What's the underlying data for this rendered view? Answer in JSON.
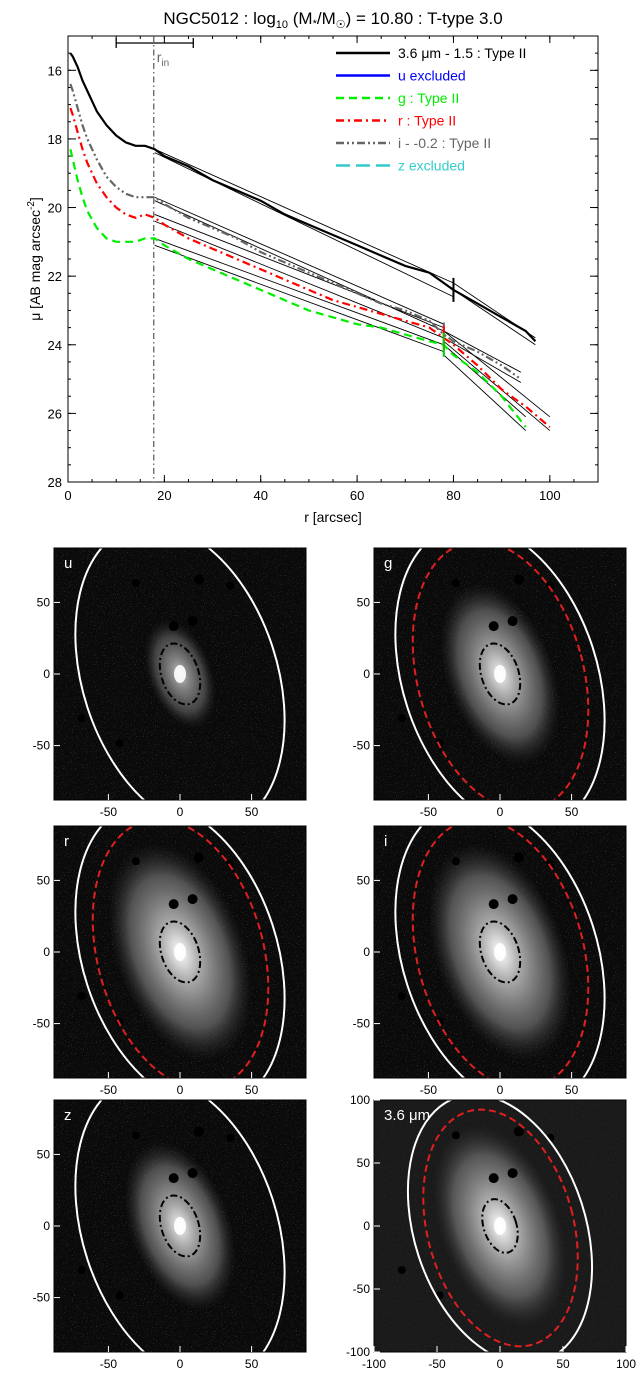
{
  "chart_data": [
    {
      "type": "line",
      "title": {
        "main": "NGC5012 : log",
        "sub10": "10",
        "mid1": " (M",
        "star": "*",
        "mid2": "/M",
        "sun": "☉",
        "tail": ") = 10.80 : T-type 3.0"
      },
      "xlabel": "r [arcsec]",
      "ylabel": {
        "main": "μ [AB mag arcsec",
        "sup": "-2",
        "end": "]"
      },
      "xlim": [
        0,
        110
      ],
      "ylim": [
        28,
        15
      ],
      "xticks": [
        0,
        20,
        40,
        60,
        80,
        100
      ],
      "yticks": [
        16,
        18,
        20,
        22,
        24,
        26,
        28
      ],
      "rin": {
        "label": "r",
        "sub": "in",
        "x": 17.8,
        "err": [
          10,
          26
        ]
      },
      "breaks": [
        {
          "x": 80,
          "y": 22.4,
          "color": "#000000"
        },
        {
          "x": 78,
          "y": 23.7,
          "color": "#666666"
        },
        {
          "x": 78,
          "y": 23.8,
          "color": "#ff0000"
        },
        {
          "x": 78,
          "y": 24.0,
          "color": "#00cc00"
        }
      ],
      "legend": [
        {
          "label": "3.6 μm - 1.5 : Type II",
          "color": "#000000",
          "style": "solid"
        },
        {
          "label": "u excluded",
          "color": "#0000ff",
          "style": "solid"
        },
        {
          "label": "g : Type II",
          "color": "#00ee00",
          "style": "dashed"
        },
        {
          "label": "r : Type II",
          "color": "#ff0000",
          "style": "dashdot"
        },
        {
          "label": "i - -0.2 : Type II",
          "color": "#666666",
          "style": "dashdotdot"
        },
        {
          "label": "z excluded",
          "color": "#33cccc",
          "style": "longdash"
        }
      ],
      "series": [
        {
          "name": "3.6 μm - 1.5 : Type II",
          "color": "#000000",
          "points": [
            [
              0.5,
              15.5
            ],
            [
              1,
              15.6
            ],
            [
              2,
              15.9
            ],
            [
              3,
              16.3
            ],
            [
              4,
              16.6
            ],
            [
              5,
              16.9
            ],
            [
              6,
              17.2
            ],
            [
              8,
              17.6
            ],
            [
              10,
              17.9
            ],
            [
              12,
              18.1
            ],
            [
              14,
              18.2
            ],
            [
              16,
              18.2
            ],
            [
              18,
              18.3
            ],
            [
              20,
              18.5
            ],
            [
              25,
              18.8
            ],
            [
              30,
              19.2
            ],
            [
              35,
              19.5
            ],
            [
              40,
              19.8
            ],
            [
              45,
              20.2
            ],
            [
              50,
              20.5
            ],
            [
              55,
              20.8
            ],
            [
              60,
              21.1
            ],
            [
              65,
              21.4
            ],
            [
              70,
              21.7
            ],
            [
              75,
              21.9
            ],
            [
              78,
              22.2
            ],
            [
              80,
              22.4
            ],
            [
              85,
              22.8
            ],
            [
              90,
              23.2
            ],
            [
              95,
              23.6
            ],
            [
              97,
              23.9
            ]
          ]
        },
        {
          "name": "i - -0.2 : Type II",
          "color": "#666666",
          "points": [
            [
              0.5,
              16.4
            ],
            [
              1,
              16.6
            ],
            [
              2,
              17.1
            ],
            [
              3,
              17.6
            ],
            [
              4,
              18.0
            ],
            [
              6,
              18.6
            ],
            [
              8,
              19.1
            ],
            [
              10,
              19.4
            ],
            [
              12,
              19.6
            ],
            [
              14,
              19.7
            ],
            [
              16,
              19.7
            ],
            [
              18,
              19.7
            ],
            [
              20,
              19.9
            ],
            [
              25,
              20.3
            ],
            [
              30,
              20.6
            ],
            [
              35,
              20.9
            ],
            [
              40,
              21.3
            ],
            [
              45,
              21.6
            ],
            [
              50,
              21.9
            ],
            [
              55,
              22.2
            ],
            [
              60,
              22.5
            ],
            [
              65,
              22.8
            ],
            [
              70,
              23.0
            ],
            [
              75,
              23.3
            ],
            [
              78,
              23.7
            ],
            [
              80,
              23.9
            ],
            [
              85,
              24.2
            ],
            [
              90,
              24.6
            ],
            [
              94,
              25.0
            ]
          ]
        },
        {
          "name": "r : Type II",
          "color": "#ff0000",
          "points": [
            [
              0.5,
              17.1
            ],
            [
              1,
              17.3
            ],
            [
              2,
              17.8
            ],
            [
              3,
              18.3
            ],
            [
              4,
              18.7
            ],
            [
              6,
              19.3
            ],
            [
              8,
              19.7
            ],
            [
              10,
              20.0
            ],
            [
              12,
              20.2
            ],
            [
              14,
              20.3
            ],
            [
              16,
              20.2
            ],
            [
              18,
              20.3
            ],
            [
              20,
              20.5
            ],
            [
              25,
              20.9
            ],
            [
              30,
              21.2
            ],
            [
              35,
              21.5
            ],
            [
              40,
              21.8
            ],
            [
              45,
              22.1
            ],
            [
              50,
              22.4
            ],
            [
              55,
              22.7
            ],
            [
              60,
              22.9
            ],
            [
              65,
              23.1
            ],
            [
              70,
              23.3
            ],
            [
              75,
              23.5
            ],
            [
              78,
              23.8
            ],
            [
              80,
              24.0
            ],
            [
              85,
              24.6
            ],
            [
              90,
              25.3
            ],
            [
              95,
              25.8
            ],
            [
              100,
              26.4
            ]
          ]
        },
        {
          "name": "g : Type II",
          "color": "#00ee00",
          "points": [
            [
              0.5,
              18.3
            ],
            [
              1,
              18.6
            ],
            [
              2,
              19.2
            ],
            [
              3,
              19.7
            ],
            [
              4,
              20.1
            ],
            [
              6,
              20.6
            ],
            [
              8,
              20.9
            ],
            [
              10,
              21.0
            ],
            [
              12,
              21.0
            ],
            [
              14,
              21.0
            ],
            [
              16,
              20.9
            ],
            [
              18,
              20.9
            ],
            [
              20,
              21.1
            ],
            [
              25,
              21.5
            ],
            [
              30,
              21.8
            ],
            [
              35,
              22.1
            ],
            [
              40,
              22.4
            ],
            [
              45,
              22.7
            ],
            [
              50,
              23.0
            ],
            [
              55,
              23.2
            ],
            [
              60,
              23.4
            ],
            [
              65,
              23.5
            ],
            [
              70,
              23.7
            ],
            [
              75,
              23.9
            ],
            [
              78,
              24.0
            ],
            [
              80,
              24.3
            ],
            [
              85,
              24.8
            ],
            [
              90,
              25.5
            ],
            [
              95,
              26.4
            ]
          ]
        }
      ],
      "fits": [
        [
          [
            18,
            18.3
          ],
          [
            80,
            22.2
          ]
        ],
        [
          [
            18,
            18.4
          ],
          [
            80,
            22.6
          ]
        ],
        [
          [
            80,
            22.2
          ],
          [
            97,
            23.8
          ]
        ],
        [
          [
            80,
            22.4
          ],
          [
            97,
            24.0
          ]
        ],
        [
          [
            18,
            19.7
          ],
          [
            78,
            23.4
          ]
        ],
        [
          [
            18,
            19.8
          ],
          [
            78,
            23.6
          ]
        ],
        [
          [
            78,
            23.6
          ],
          [
            94,
            24.8
          ]
        ],
        [
          [
            78,
            23.8
          ],
          [
            94,
            25.1
          ]
        ],
        [
          [
            18,
            20.2
          ],
          [
            78,
            23.5
          ]
        ],
        [
          [
            18,
            20.4
          ],
          [
            78,
            23.8
          ]
        ],
        [
          [
            78,
            23.6
          ],
          [
            100,
            26.1
          ]
        ],
        [
          [
            78,
            23.9
          ],
          [
            100,
            26.5
          ]
        ],
        [
          [
            18,
            20.9
          ],
          [
            78,
            24.0
          ]
        ],
        [
          [
            18,
            21.1
          ],
          [
            78,
            24.2
          ]
        ],
        [
          [
            78,
            24.0
          ],
          [
            95,
            26.1
          ]
        ],
        [
          [
            78,
            24.3
          ],
          [
            95,
            26.5
          ]
        ]
      ]
    },
    {
      "type": "image_grid",
      "panels": [
        {
          "label": "u",
          "xticks": [
            -50,
            0,
            50
          ],
          "yticks": [
            50,
            0,
            -50
          ],
          "range": 88,
          "disk": 0.45,
          "red": false,
          "bright": 0.75
        },
        {
          "label": "g",
          "xticks": [
            -50,
            0,
            50
          ],
          "yticks": [
            50,
            0,
            -50
          ],
          "range": 88,
          "disk": 0.75,
          "red": true,
          "bright": 0.95
        },
        {
          "label": "r",
          "xticks": [
            -50,
            0,
            50
          ],
          "yticks": [
            50,
            0,
            -50
          ],
          "range": 88,
          "disk": 0.9,
          "red": true,
          "bright": 1.0
        },
        {
          "label": "i",
          "xticks": [
            -50,
            0,
            50
          ],
          "yticks": [
            50,
            0,
            -50
          ],
          "range": 88,
          "disk": 0.9,
          "red": true,
          "bright": 1.0
        },
        {
          "label": "z",
          "xticks": [
            -50,
            0,
            50
          ],
          "yticks": [
            50,
            0,
            -50
          ],
          "range": 88,
          "disk": 0.7,
          "red": false,
          "bright": 0.95
        },
        {
          "label": "3.6 μm",
          "xticks": [
            -100,
            -50,
            0,
            50,
            100
          ],
          "yticks": [
            100,
            50,
            0,
            -50,
            -100
          ],
          "range": 100,
          "disk": 0.95,
          "red": true,
          "bright": 1.0
        }
      ]
    }
  ]
}
